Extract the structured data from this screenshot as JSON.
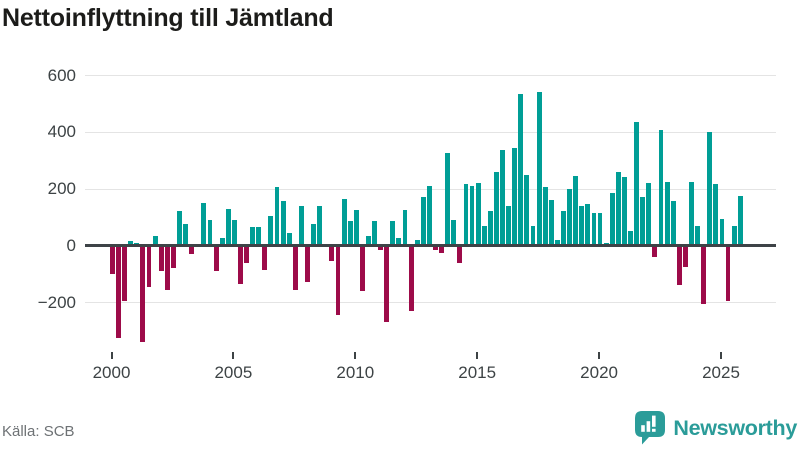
{
  "header": {
    "title": "Nettoinflyttning till Jämtland"
  },
  "footer": {
    "source": "Källa: SCB",
    "brand": "Newsworthy"
  },
  "colors": {
    "positive": "#009e96",
    "negative": "#9d0b49",
    "axis": "#3e4347",
    "gridline": "#e4e4e4",
    "tick_label": "#3d4345",
    "title": "#1c1c1a",
    "source_text": "#6e7275",
    "brand_teal": "#2b9c99"
  },
  "chart_data": {
    "type": "bar",
    "title": "Nettoinflyttning till Jämtland",
    "description": "Quarterly net migration to Jämtland county, one bar per quarter",
    "x_start": "2000 Q1",
    "x_end": "2025 Q4",
    "x_tick_labels": [
      "2000",
      "2005",
      "2010",
      "2015",
      "2020",
      "2025"
    ],
    "x_tick_years": [
      2000,
      2005,
      2010,
      2015,
      2020,
      2025
    ],
    "y_tick_values": [
      600,
      400,
      200,
      0,
      -200
    ],
    "y_tick_labels": [
      "600",
      "400",
      "200",
      "0",
      "−200"
    ],
    "ylim": [
      -360,
      630
    ],
    "grid": "horizontal",
    "legend": "none",
    "values": [
      -100,
      -325,
      -195,
      15,
      10,
      -340,
      -145,
      35,
      -90,
      -155,
      -80,
      120,
      75,
      -30,
      5,
      150,
      90,
      -90,
      25,
      130,
      90,
      -135,
      -60,
      65,
      65,
      -85,
      105,
      205,
      155,
      45,
      -155,
      140,
      -130,
      75,
      140,
      -5,
      -55,
      -245,
      165,
      85,
      125,
      -160,
      35,
      85,
      -15,
      -270,
      85,
      25,
      125,
      -230,
      20,
      170,
      210,
      -15,
      -25,
      325,
      90,
      -60,
      215,
      210,
      220,
      70,
      120,
      260,
      335,
      140,
      345,
      535,
      250,
      70,
      540,
      205,
      160,
      20,
      120,
      200,
      245,
      140,
      145,
      115,
      115,
      10,
      185,
      260,
      240,
      50,
      435,
      170,
      220,
      -40,
      405,
      225,
      155,
      -140,
      -75,
      225,
      70,
      -205,
      400,
      215,
      95,
      -195,
      70,
      175
    ]
  }
}
